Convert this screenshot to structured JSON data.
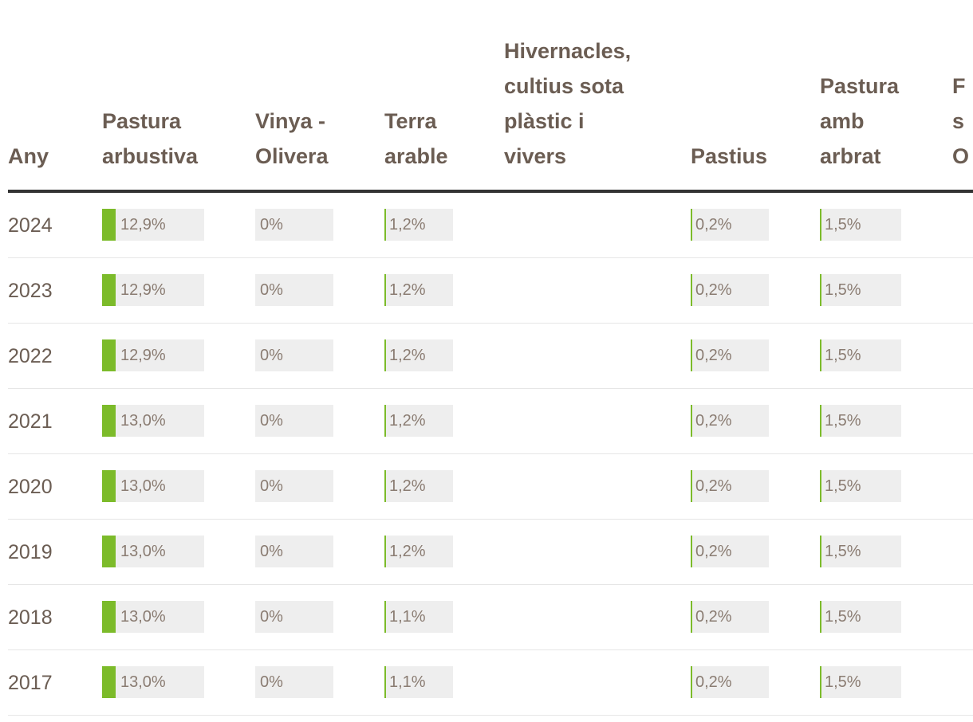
{
  "table": {
    "headers": [
      "Any",
      "Pastura\narbustiva",
      "Vinya -\nOlivera",
      "Terra\narable",
      "Hivernacles,\ncultius sota\nplàstic i\nvivers",
      "Pastius",
      "Pastura\namb\narbrat",
      "F\ns\nO"
    ],
    "rows": [
      {
        "year": "2024",
        "values": [
          "12,9%",
          "0%",
          "1,2%",
          "",
          "0,2%",
          "1,5%"
        ],
        "fractions": [
          0.129,
          0,
          0.012,
          0,
          0.002,
          0.015
        ]
      },
      {
        "year": "2023",
        "values": [
          "12,9%",
          "0%",
          "1,2%",
          "",
          "0,2%",
          "1,5%"
        ],
        "fractions": [
          0.129,
          0,
          0.012,
          0,
          0.002,
          0.015
        ]
      },
      {
        "year": "2022",
        "values": [
          "12,9%",
          "0%",
          "1,2%",
          "",
          "0,2%",
          "1,5%"
        ],
        "fractions": [
          0.129,
          0,
          0.012,
          0,
          0.002,
          0.015
        ]
      },
      {
        "year": "2021",
        "values": [
          "13,0%",
          "0%",
          "1,2%",
          "",
          "0,2%",
          "1,5%"
        ],
        "fractions": [
          0.13,
          0,
          0.012,
          0,
          0.002,
          0.015
        ]
      },
      {
        "year": "2020",
        "values": [
          "13,0%",
          "0%",
          "1,2%",
          "",
          "0,2%",
          "1,5%"
        ],
        "fractions": [
          0.13,
          0,
          0.012,
          0,
          0.002,
          0.015
        ]
      },
      {
        "year": "2019",
        "values": [
          "13,0%",
          "0%",
          "1,2%",
          "",
          "0,2%",
          "1,5%"
        ],
        "fractions": [
          0.13,
          0,
          0.012,
          0,
          0.002,
          0.015
        ]
      },
      {
        "year": "2018",
        "values": [
          "13,0%",
          "0%",
          "1,1%",
          "",
          "0,2%",
          "1,5%"
        ],
        "fractions": [
          0.13,
          0,
          0.011,
          0,
          0.002,
          0.015
        ]
      },
      {
        "year": "2017",
        "values": [
          "13,0%",
          "0%",
          "1,1%",
          "",
          "0,2%",
          "1,5%"
        ],
        "fractions": [
          0.13,
          0,
          0.011,
          0,
          0.002,
          0.015
        ]
      }
    ],
    "bar_scale_max": 1.0
  },
  "colors": {
    "bar_fill": "#7cbb2a",
    "bar_track": "#eeeeee",
    "header_text": "#6b5d53",
    "header_rule": "#333333"
  }
}
